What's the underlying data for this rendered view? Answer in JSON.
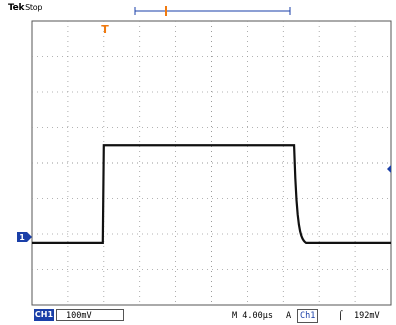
{
  "header": {
    "brand": "Tek",
    "state": "Stop"
  },
  "markers": {
    "trigger_position": "T",
    "ground_marker": "1"
  },
  "status": {
    "channel": "CH1",
    "volts_per_div": "100mV",
    "timebase": "M 4.00µs",
    "trigger_source_prefix": "A",
    "trigger_channel": "Ch1",
    "trigger_slope": "⌠",
    "trigger_level": "192mV"
  },
  "colors": {
    "trace": "#111111",
    "ch1_marker": "#1a3fa8",
    "trigger_marker": "#f07a10",
    "grid": "#9a9a9a"
  },
  "waveform": {
    "type": "pulse",
    "low_divisions_above_bottom": 1.75,
    "high_divisions_above_bottom": 4.5,
    "rise_time_division": 2.0,
    "fall_time_division": 7.3
  }
}
